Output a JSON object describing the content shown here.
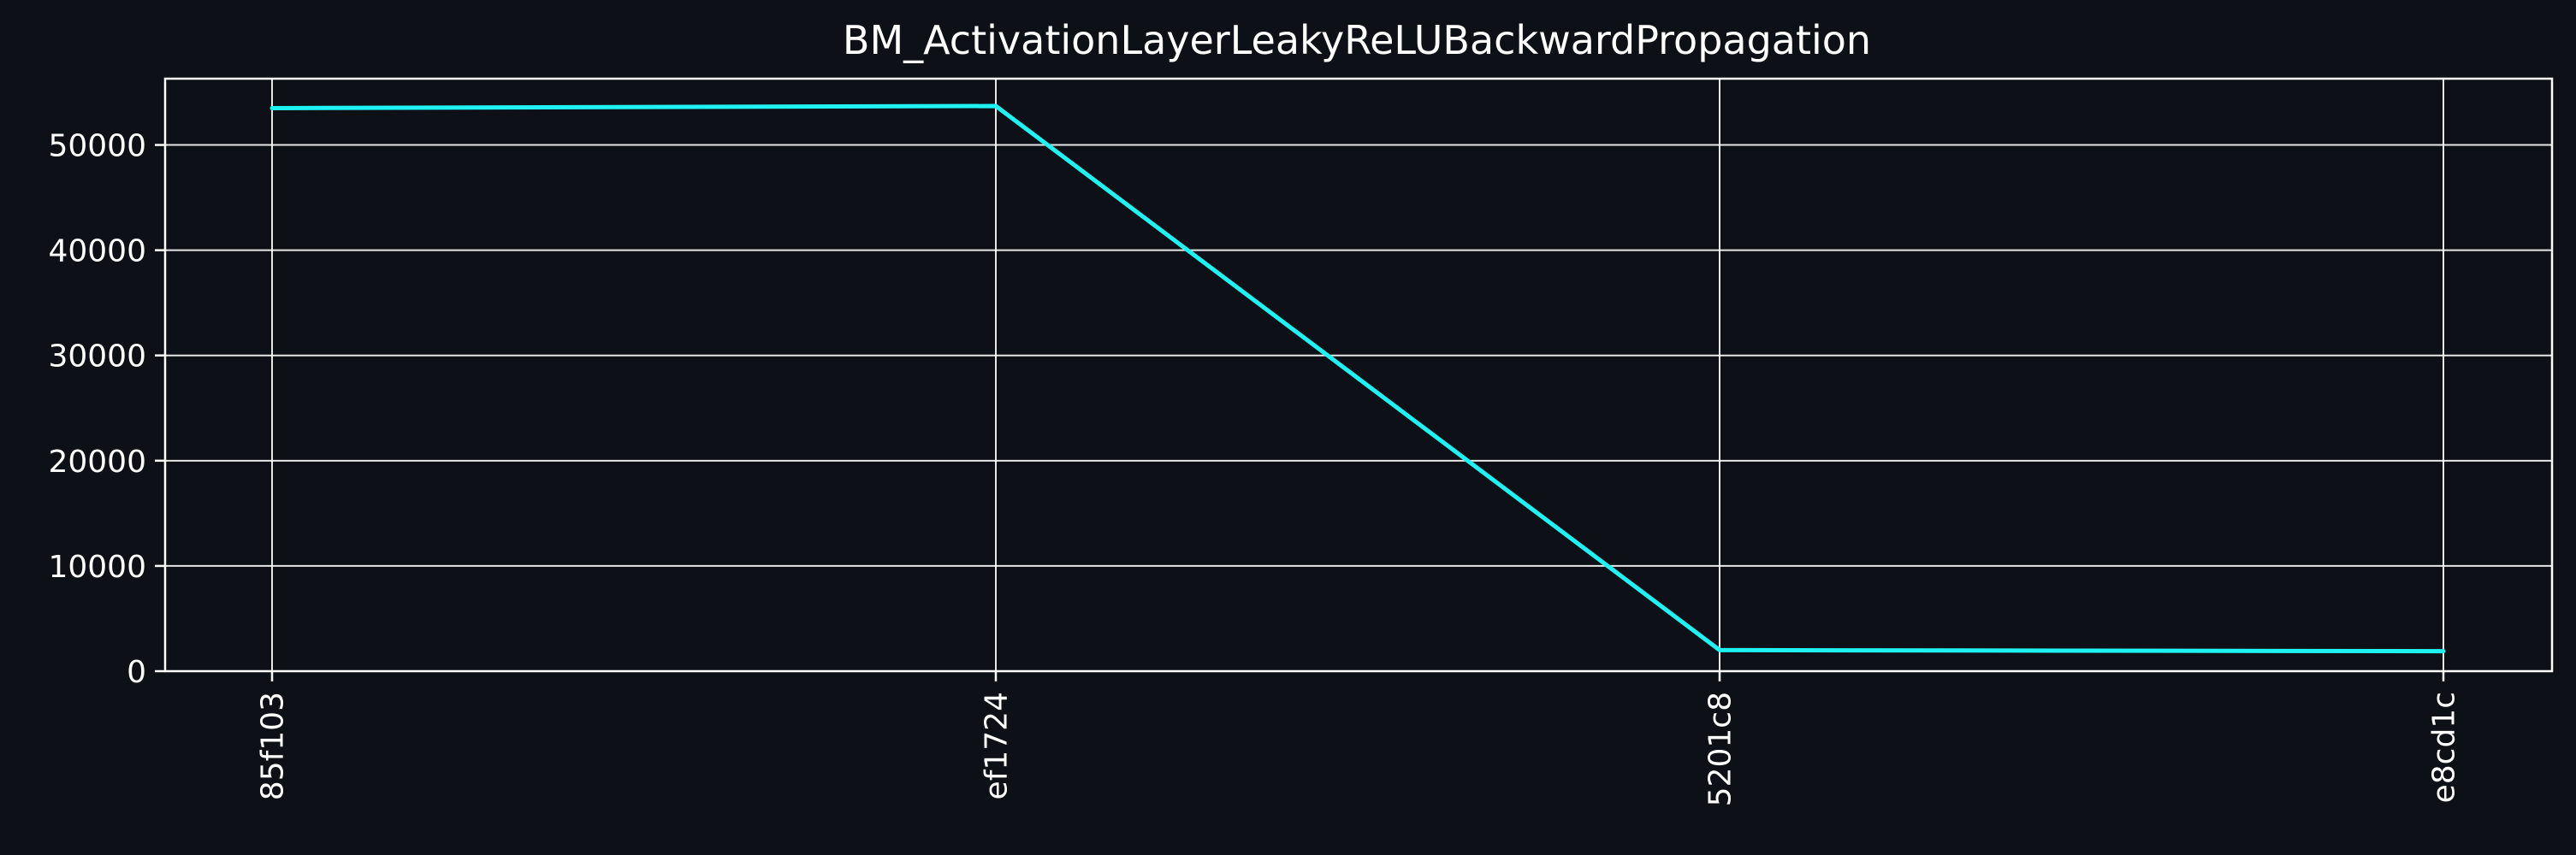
{
  "colors": {
    "background": "#0d1117",
    "foreground": "#ffffff",
    "series": "#1ff2f2"
  },
  "chart_data": {
    "type": "line",
    "title": "BM_ActivationLayerLeakyReLUBackwardPropagation",
    "xlabel": "",
    "ylabel": "",
    "categories": [
      "85f103",
      "ef1724",
      "5201c8",
      "e8cd1c"
    ],
    "series": [
      {
        "values": [
          53500,
          53700,
          2000,
          1900
        ]
      }
    ],
    "yticks": [
      0,
      10000,
      20000,
      30000,
      40000,
      50000
    ],
    "ytick_labels": [
      "0",
      "10000",
      "20000",
      "30000",
      "40000",
      "50000"
    ],
    "ylim": [
      0,
      56300
    ],
    "grid": true,
    "legend": "none"
  }
}
